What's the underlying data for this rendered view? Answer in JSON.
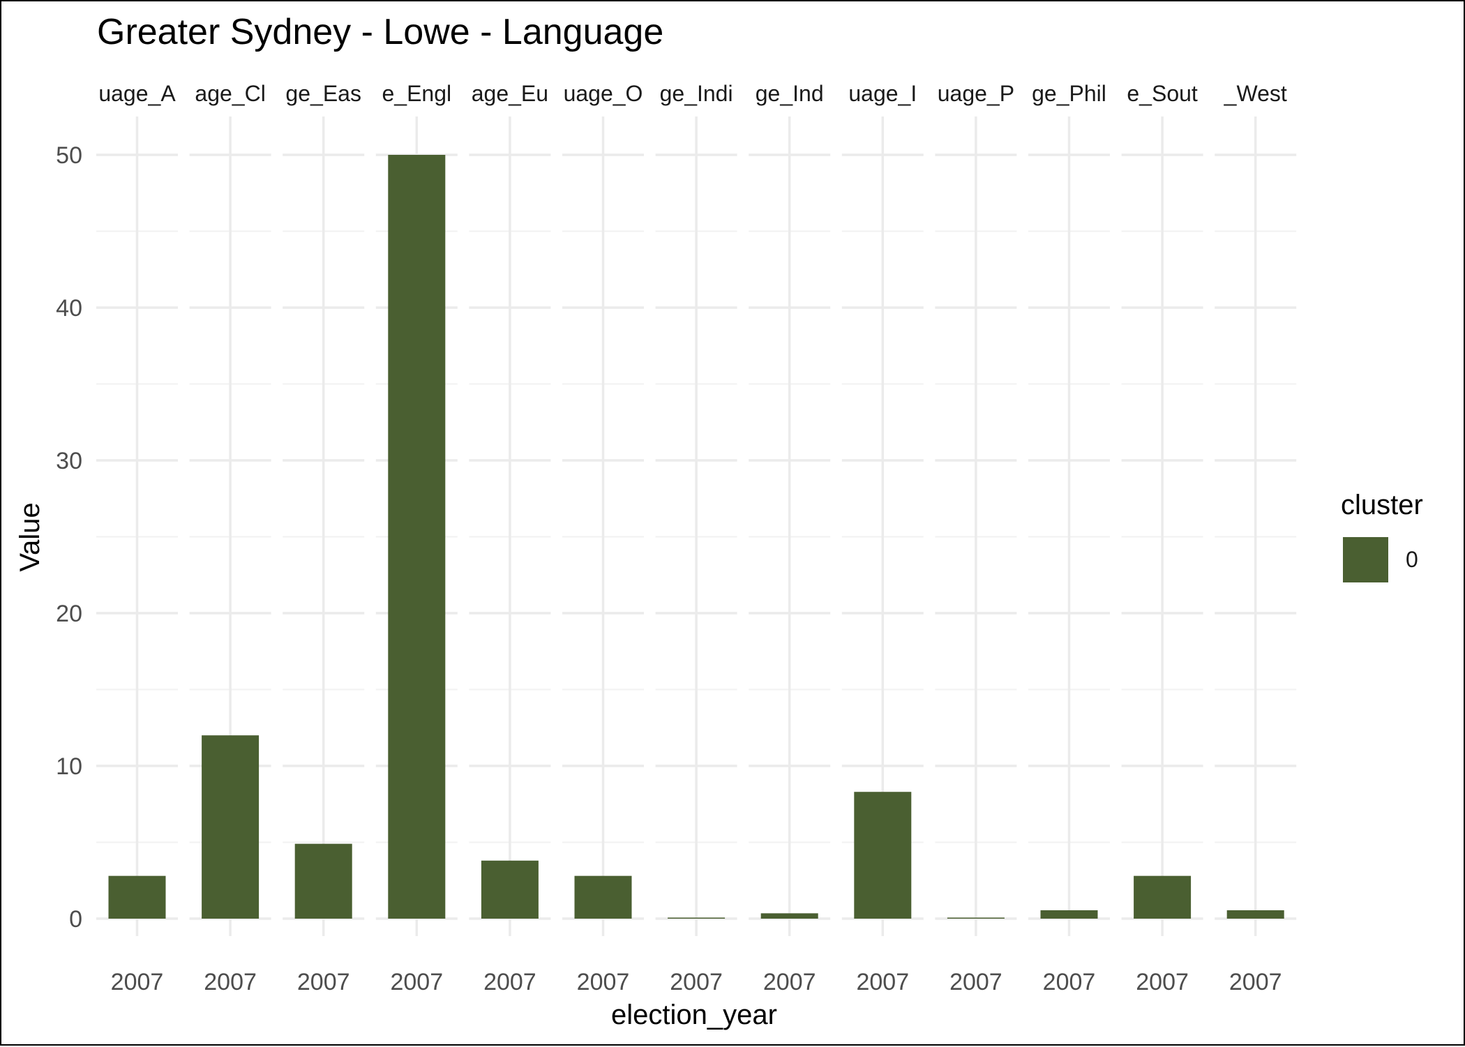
{
  "chart_data": {
    "type": "bar",
    "title": "Greater Sydney - Lowe - Language",
    "xlabel": "election_year",
    "ylabel": "Value",
    "ylim": [
      0,
      50
    ],
    "y_ticks": [
      0,
      10,
      20,
      30,
      40,
      50
    ],
    "grid": true,
    "facet_labels": [
      "uage_A",
      "age_Cl",
      "ge_Eas",
      "e_Engl",
      "age_Eu",
      "uage_O",
      "ge_Indi",
      "ge_Ind",
      "uage_I",
      "uage_P",
      "ge_Phil",
      "e_Sout",
      "_West"
    ],
    "x_tick_label": "2007",
    "series": [
      {
        "name": "0",
        "color": "#4a5f31",
        "values": [
          2.8,
          12.0,
          4.9,
          50.0,
          3.8,
          2.8,
          0.05,
          0.35,
          8.3,
          0.05,
          0.55,
          2.8,
          0.55
        ]
      }
    ],
    "legend": {
      "title": "cluster",
      "placement": "right",
      "entries": [
        {
          "label": "0",
          "color": "#4a5f31"
        }
      ]
    }
  }
}
